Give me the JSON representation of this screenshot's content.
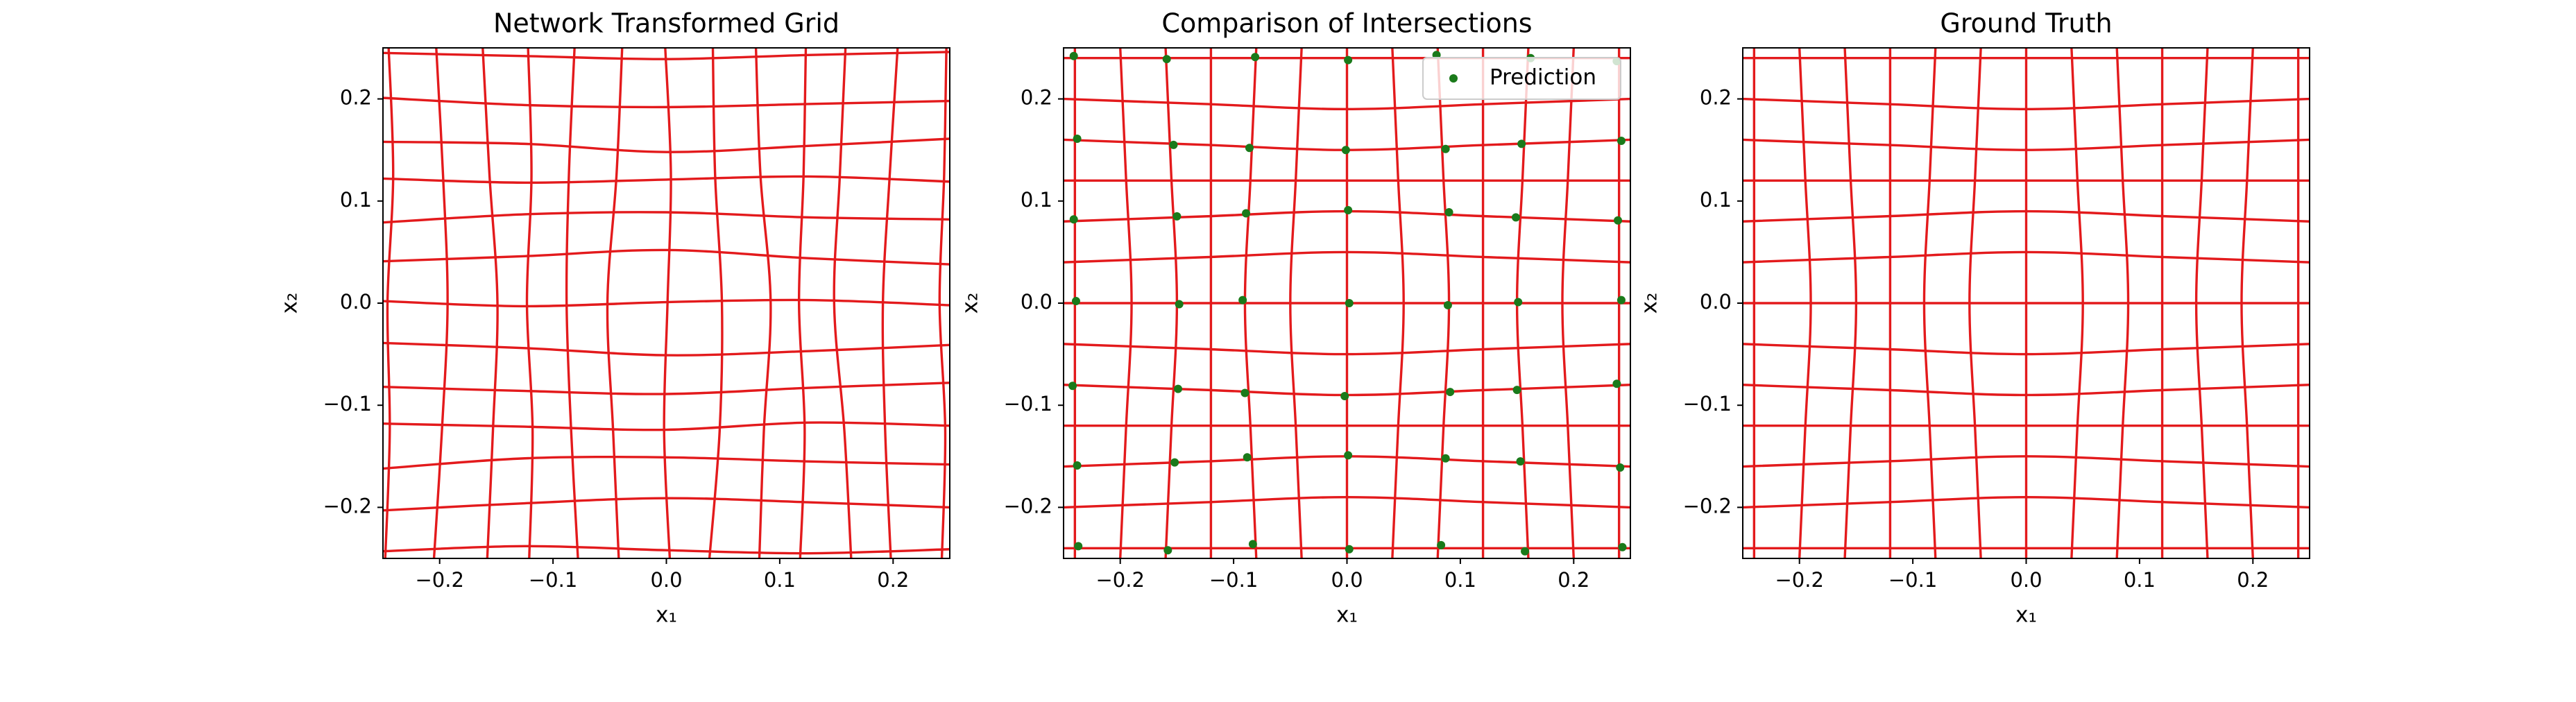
{
  "chart_data": [
    {
      "type": "grid",
      "title": "Network Transformed Grid",
      "xlabel": "x₁",
      "ylabel": "x₂",
      "xlim": [
        -0.25,
        0.25
      ],
      "ylim": [
        -0.25,
        0.25
      ],
      "xticks": [
        {
          "value": -0.2,
          "label": "−0.2"
        },
        {
          "value": -0.1,
          "label": "−0.1"
        },
        {
          "value": 0,
          "label": "0.0"
        },
        {
          "value": 0.1,
          "label": "0.1"
        },
        {
          "value": 0.2,
          "label": "0.2"
        }
      ],
      "yticks": [
        {
          "value": -0.2,
          "label": "−0.2"
        },
        {
          "value": -0.1,
          "label": "−0.1"
        },
        {
          "value": 0,
          "label": "0.0"
        },
        {
          "value": 0.1,
          "label": "0.1"
        },
        {
          "value": 0.2,
          "label": "0.2"
        }
      ],
      "line_color": "#e31a1c",
      "sample_y": [
        -0.25,
        -0.125,
        0,
        0.125,
        0.25
      ],
      "vertical_lines": [
        [
          -0.248,
          -0.244,
          -0.246,
          -0.241,
          -0.245
        ],
        [
          -0.205,
          -0.198,
          -0.193,
          -0.197,
          -0.203
        ],
        [
          -0.158,
          -0.153,
          -0.149,
          -0.156,
          -0.162
        ],
        [
          -0.121,
          -0.118,
          -0.123,
          -0.119,
          -0.122
        ],
        [
          -0.078,
          -0.084,
          -0.088,
          -0.086,
          -0.081
        ],
        [
          -0.042,
          -0.047,
          -0.052,
          -0.044,
          -0.039
        ],
        [
          0.003,
          -0.002,
          0.001,
          0.004,
          -0.001
        ],
        [
          0.038,
          0.047,
          0.049,
          0.043,
          0.041
        ],
        [
          0.082,
          0.086,
          0.092,
          0.083,
          0.079
        ],
        [
          0.118,
          0.122,
          0.117,
          0.121,
          0.123
        ],
        [
          0.163,
          0.157,
          0.148,
          0.153,
          0.158
        ],
        [
          0.198,
          0.193,
          0.191,
          0.197,
          0.204
        ],
        [
          0.243,
          0.246,
          0.241,
          0.245,
          0.247
        ]
      ],
      "sample_x": [
        -0.25,
        -0.125,
        0,
        0.125,
        0.25
      ],
      "horizontal_lines": [
        [
          -0.243,
          -0.238,
          -0.242,
          -0.245,
          -0.241
        ],
        [
          -0.203,
          -0.196,
          -0.191,
          -0.195,
          -0.2
        ],
        [
          -0.162,
          -0.152,
          -0.151,
          -0.155,
          -0.158
        ],
        [
          -0.118,
          -0.121,
          -0.124,
          -0.117,
          -0.12
        ],
        [
          -0.082,
          -0.086,
          -0.089,
          -0.083,
          -0.078
        ],
        [
          -0.039,
          -0.044,
          -0.051,
          -0.047,
          -0.041
        ],
        [
          0.002,
          -0.003,
          0.001,
          0.003,
          -0.002
        ],
        [
          0.041,
          0.046,
          0.052,
          0.044,
          0.038
        ],
        [
          0.079,
          0.087,
          0.089,
          0.084,
          0.082
        ],
        [
          0.122,
          0.118,
          0.121,
          0.124,
          0.119
        ],
        [
          0.158,
          0.156,
          0.148,
          0.154,
          0.161
        ],
        [
          0.201,
          0.194,
          0.192,
          0.195,
          0.198
        ],
        [
          0.245,
          0.242,
          0.239,
          0.243,
          0.246
        ]
      ]
    },
    {
      "type": "grid",
      "title": "Comparison of Intersections",
      "xlabel": "x₁",
      "ylabel": "x₂",
      "xlim": [
        -0.25,
        0.25
      ],
      "ylim": [
        -0.25,
        0.25
      ],
      "xticks": [
        {
          "value": -0.2,
          "label": "−0.2"
        },
        {
          "value": -0.1,
          "label": "−0.1"
        },
        {
          "value": 0,
          "label": "0.0"
        },
        {
          "value": 0.1,
          "label": "0.1"
        },
        {
          "value": 0.2,
          "label": "0.2"
        }
      ],
      "yticks": [
        {
          "value": -0.2,
          "label": "−0.2"
        },
        {
          "value": -0.1,
          "label": "−0.1"
        },
        {
          "value": 0,
          "label": "0.0"
        },
        {
          "value": 0.1,
          "label": "0.1"
        },
        {
          "value": 0.2,
          "label": "0.2"
        }
      ],
      "line_color": "#e31a1c",
      "sample_y": [
        -0.25,
        -0.125,
        0,
        0.125,
        0.25
      ],
      "vertical_lines": [
        [
          -0.24,
          -0.24,
          -0.24,
          -0.24,
          -0.24
        ],
        [
          -0.2,
          -0.195,
          -0.19,
          -0.195,
          -0.2
        ],
        [
          -0.16,
          -0.155,
          -0.15,
          -0.155,
          -0.16
        ],
        [
          -0.12,
          -0.12,
          -0.12,
          -0.12,
          -0.12
        ],
        [
          -0.08,
          -0.085,
          -0.09,
          -0.085,
          -0.08
        ],
        [
          -0.04,
          -0.045,
          -0.05,
          -0.045,
          -0.04
        ],
        [
          0,
          0,
          0,
          0,
          0
        ],
        [
          0.04,
          0.045,
          0.05,
          0.045,
          0.04
        ],
        [
          0.08,
          0.085,
          0.09,
          0.085,
          0.08
        ],
        [
          0.12,
          0.12,
          0.12,
          0.12,
          0.12
        ],
        [
          0.16,
          0.155,
          0.15,
          0.155,
          0.16
        ],
        [
          0.2,
          0.195,
          0.19,
          0.195,
          0.2
        ],
        [
          0.24,
          0.24,
          0.24,
          0.24,
          0.24
        ]
      ],
      "sample_x": [
        -0.25,
        -0.125,
        0,
        0.125,
        0.25
      ],
      "horizontal_lines": [
        [
          -0.24,
          -0.24,
          -0.24,
          -0.24,
          -0.24
        ],
        [
          -0.2,
          -0.195,
          -0.19,
          -0.195,
          -0.2
        ],
        [
          -0.16,
          -0.155,
          -0.15,
          -0.155,
          -0.16
        ],
        [
          -0.12,
          -0.12,
          -0.12,
          -0.12,
          -0.12
        ],
        [
          -0.08,
          -0.085,
          -0.09,
          -0.085,
          -0.08
        ],
        [
          -0.04,
          -0.045,
          -0.05,
          -0.045,
          -0.04
        ],
        [
          0,
          0,
          0,
          0,
          0
        ],
        [
          0.04,
          0.045,
          0.05,
          0.045,
          0.04
        ],
        [
          0.08,
          0.085,
          0.09,
          0.085,
          0.08
        ],
        [
          0.12,
          0.12,
          0.12,
          0.12,
          0.12
        ],
        [
          0.16,
          0.155,
          0.15,
          0.155,
          0.16
        ],
        [
          0.2,
          0.195,
          0.19,
          0.195,
          0.2
        ],
        [
          0.24,
          0.24,
          0.24,
          0.24,
          0.24
        ]
      ],
      "legend": "upper right",
      "series": [
        {
          "name": "Prediction",
          "color": "#1a7a1a",
          "x": [
            -0.237,
            -0.158,
            -0.083,
            0.002,
            0.083,
            0.157,
            0.243,
            -0.238,
            -0.152,
            -0.088,
            0.001,
            0.087,
            0.153,
            0.241,
            -0.242,
            -0.149,
            -0.09,
            -0.002,
            0.091,
            0.15,
            0.238,
            -0.239,
            -0.148,
            -0.092,
            0.002,
            0.089,
            0.151,
            0.242,
            -0.241,
            -0.15,
            -0.089,
            0.001,
            0.09,
            0.149,
            0.239,
            -0.238,
            -0.153,
            -0.086,
            -0.001,
            0.087,
            0.154,
            0.242,
            -0.241,
            -0.159,
            -0.081,
            0.001,
            0.079,
            0.162,
            0.238
          ],
          "y": [
            -0.238,
            -0.242,
            -0.236,
            -0.241,
            -0.237,
            -0.243,
            -0.239,
            -0.159,
            -0.156,
            -0.151,
            -0.149,
            -0.152,
            -0.155,
            -0.161,
            -0.081,
            -0.084,
            -0.088,
            -0.091,
            -0.087,
            -0.085,
            -0.079,
            0.002,
            -0.001,
            0.003,
            0,
            -0.002,
            0.001,
            0.003,
            0.082,
            0.085,
            0.088,
            0.091,
            0.089,
            0.084,
            0.081,
            0.161,
            0.155,
            0.152,
            0.15,
            0.151,
            0.156,
            0.159,
            0.242,
            0.239,
            0.241,
            0.238,
            0.243,
            0.24,
            0.237
          ]
        }
      ]
    },
    {
      "type": "grid",
      "title": "Ground Truth",
      "xlabel": "x₁",
      "ylabel": "x₂",
      "xlim": [
        -0.25,
        0.25
      ],
      "ylim": [
        -0.25,
        0.25
      ],
      "xticks": [
        {
          "value": -0.2,
          "label": "−0.2"
        },
        {
          "value": -0.1,
          "label": "−0.1"
        },
        {
          "value": 0,
          "label": "0.0"
        },
        {
          "value": 0.1,
          "label": "0.1"
        },
        {
          "value": 0.2,
          "label": "0.2"
        }
      ],
      "yticks": [
        {
          "value": -0.2,
          "label": "−0.2"
        },
        {
          "value": -0.1,
          "label": "−0.1"
        },
        {
          "value": 0,
          "label": "0.0"
        },
        {
          "value": 0.1,
          "label": "0.1"
        },
        {
          "value": 0.2,
          "label": "0.2"
        }
      ],
      "line_color": "#e31a1c",
      "sample_y": [
        -0.25,
        -0.125,
        0,
        0.125,
        0.25
      ],
      "vertical_lines": [
        [
          -0.24,
          -0.24,
          -0.24,
          -0.24,
          -0.24
        ],
        [
          -0.2,
          -0.195,
          -0.19,
          -0.195,
          -0.2
        ],
        [
          -0.16,
          -0.155,
          -0.15,
          -0.155,
          -0.16
        ],
        [
          -0.12,
          -0.12,
          -0.12,
          -0.12,
          -0.12
        ],
        [
          -0.08,
          -0.085,
          -0.09,
          -0.085,
          -0.08
        ],
        [
          -0.04,
          -0.045,
          -0.05,
          -0.045,
          -0.04
        ],
        [
          0,
          0,
          0,
          0,
          0
        ],
        [
          0.04,
          0.045,
          0.05,
          0.045,
          0.04
        ],
        [
          0.08,
          0.085,
          0.09,
          0.085,
          0.08
        ],
        [
          0.12,
          0.12,
          0.12,
          0.12,
          0.12
        ],
        [
          0.16,
          0.155,
          0.15,
          0.155,
          0.16
        ],
        [
          0.2,
          0.195,
          0.19,
          0.195,
          0.2
        ],
        [
          0.24,
          0.24,
          0.24,
          0.24,
          0.24
        ]
      ],
      "sample_x": [
        -0.25,
        -0.125,
        0,
        0.125,
        0.25
      ],
      "horizontal_lines": [
        [
          -0.24,
          -0.24,
          -0.24,
          -0.24,
          -0.24
        ],
        [
          -0.2,
          -0.195,
          -0.19,
          -0.195,
          -0.2
        ],
        [
          -0.16,
          -0.155,
          -0.15,
          -0.155,
          -0.16
        ],
        [
          -0.12,
          -0.12,
          -0.12,
          -0.12,
          -0.12
        ],
        [
          -0.08,
          -0.085,
          -0.09,
          -0.085,
          -0.08
        ],
        [
          -0.04,
          -0.045,
          -0.05,
          -0.045,
          -0.04
        ],
        [
          0,
          0,
          0,
          0,
          0
        ],
        [
          0.04,
          0.045,
          0.05,
          0.045,
          0.04
        ],
        [
          0.08,
          0.085,
          0.09,
          0.085,
          0.08
        ],
        [
          0.12,
          0.12,
          0.12,
          0.12,
          0.12
        ],
        [
          0.16,
          0.155,
          0.15,
          0.155,
          0.16
        ],
        [
          0.2,
          0.195,
          0.19,
          0.195,
          0.2
        ],
        [
          0.24,
          0.24,
          0.24,
          0.24,
          0.24
        ]
      ]
    }
  ]
}
